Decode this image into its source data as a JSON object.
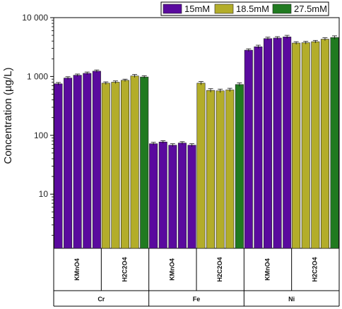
{
  "chart_data": {
    "type": "bar",
    "ylabel": "Concentration (µg/L)",
    "yscale": "log",
    "ylim": [
      1.2,
      10000
    ],
    "yticks": [
      {
        "value": 10,
        "label": "10"
      },
      {
        "value": 100,
        "label": "100"
      },
      {
        "value": 1000,
        "label": "1 000"
      },
      {
        "value": 10000,
        "label": "10 000"
      }
    ],
    "legend": {
      "placement": "top-right",
      "entries": [
        {
          "label": "15mM",
          "color": "#5a0a9e"
        },
        {
          "label": "18.5mM",
          "color": "#b3ad2a"
        },
        {
          "label": "27.5mM",
          "color": "#207a20"
        }
      ]
    },
    "groups": [
      {
        "metal": "Cr",
        "reagents": [
          {
            "reagent": "KMnO4",
            "bars": [
              {
                "value": 750,
                "error": 40,
                "color": "#5a0a9e"
              },
              {
                "value": 940,
                "error": 50,
                "color": "#5a0a9e"
              },
              {
                "value": 1050,
                "error": 50,
                "color": "#5a0a9e"
              },
              {
                "value": 1130,
                "error": 60,
                "color": "#5a0a9e"
              },
              {
                "value": 1230,
                "error": 60,
                "color": "#5a0a9e"
              }
            ]
          },
          {
            "reagent": "H2C2O4",
            "bars": [
              {
                "value": 770,
                "error": 40,
                "color": "#b3ad2a"
              },
              {
                "value": 800,
                "error": 40,
                "color": "#b3ad2a"
              },
              {
                "value": 860,
                "error": 40,
                "color": "#b3ad2a"
              },
              {
                "value": 1020,
                "error": 60,
                "color": "#b3ad2a"
              },
              {
                "value": 980,
                "error": 50,
                "color": "#207a20"
              }
            ]
          }
        ]
      },
      {
        "metal": "Fe",
        "reagents": [
          {
            "reagent": "KMnO4",
            "bars": [
              {
                "value": 72,
                "error": 4,
                "color": "#5a0a9e"
              },
              {
                "value": 77,
                "error": 4,
                "color": "#5a0a9e"
              },
              {
                "value": 68,
                "error": 4,
                "color": "#5a0a9e"
              },
              {
                "value": 74,
                "error": 4,
                "color": "#5a0a9e"
              },
              {
                "value": 68,
                "error": 4,
                "color": "#5a0a9e"
              }
            ]
          },
          {
            "reagent": "H2C2O4",
            "bars": [
              {
                "value": 770,
                "error": 50,
                "color": "#b3ad2a"
              },
              {
                "value": 580,
                "error": 40,
                "color": "#b3ad2a"
              },
              {
                "value": 570,
                "error": 40,
                "color": "#b3ad2a"
              },
              {
                "value": 590,
                "error": 40,
                "color": "#b3ad2a"
              },
              {
                "value": 730,
                "error": 50,
                "color": "#207a20"
              }
            ]
          }
        ]
      },
      {
        "metal": "Ni",
        "reagents": [
          {
            "reagent": "KMnO4",
            "bars": [
              {
                "value": 2800,
                "error": 150,
                "color": "#5a0a9e"
              },
              {
                "value": 3200,
                "error": 200,
                "color": "#5a0a9e"
              },
              {
                "value": 4400,
                "error": 250,
                "color": "#5a0a9e"
              },
              {
                "value": 4500,
                "error": 250,
                "color": "#5a0a9e"
              },
              {
                "value": 4700,
                "error": 300,
                "color": "#5a0a9e"
              }
            ]
          },
          {
            "reagent": "H2C2O4",
            "bars": [
              {
                "value": 3700,
                "error": 200,
                "color": "#b3ad2a"
              },
              {
                "value": 3750,
                "error": 200,
                "color": "#b3ad2a"
              },
              {
                "value": 3900,
                "error": 200,
                "color": "#b3ad2a"
              },
              {
                "value": 4300,
                "error": 250,
                "color": "#b3ad2a"
              },
              {
                "value": 4600,
                "error": 300,
                "color": "#207a20"
              }
            ]
          }
        ]
      }
    ]
  }
}
